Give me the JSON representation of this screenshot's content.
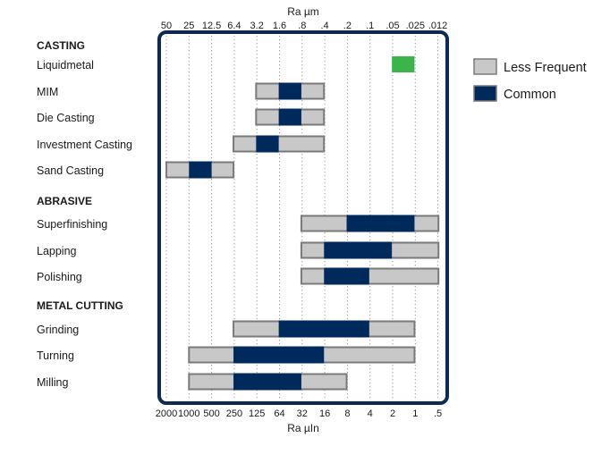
{
  "chart_data": {
    "type": "bar",
    "top_axis": {
      "label": "Ra µm",
      "ticks": [
        "50",
        "25",
        "12.5",
        "6.4",
        "3.2",
        "1.6",
        ".8",
        ".4",
        ".2",
        ".1",
        ".05",
        ".025",
        ".012"
      ]
    },
    "bottom_axis": {
      "label": "Ra µIn",
      "ticks": [
        "2000",
        "1000",
        "500",
        "250",
        "125",
        "64",
        "32",
        "16",
        "8",
        "4",
        "2",
        "1",
        ".5"
      ]
    },
    "grid": true,
    "legend": {
      "position": "top-right",
      "items": [
        {
          "label": "Less Frequent",
          "color": "#c8c8c8"
        },
        {
          "label": "Common",
          "color": "#002a5c"
        }
      ]
    },
    "colors": {
      "less_frequent": "#c8c8c8",
      "common": "#002a5c",
      "special": "#3bb54a",
      "frame": "#0d2a52",
      "bar_border": "#7a7a7a",
      "grid": "#9a9a9a"
    },
    "groups": [
      {
        "name": "CASTING",
        "processes": [
          {
            "name": "Liquidmetal",
            "special": [
              0.05,
              0.025
            ]
          },
          {
            "name": "MIM",
            "range": [
              3.2,
              0.4
            ],
            "common": [
              1.6,
              0.8
            ]
          },
          {
            "name": "Die Casting",
            "range": [
              3.2,
              0.4
            ],
            "common": [
              1.6,
              0.8
            ]
          },
          {
            "name": "Investment Casting",
            "range": [
              6.4,
              0.4
            ],
            "common": [
              3.2,
              1.6
            ]
          },
          {
            "name": "Sand Casting",
            "range": [
              50,
              6.4
            ],
            "common": [
              25,
              12.5
            ]
          }
        ]
      },
      {
        "name": "ABRASIVE",
        "processes": [
          {
            "name": "Superfinishing",
            "range": [
              0.8,
              0.012
            ],
            "common": [
              0.2,
              0.025
            ]
          },
          {
            "name": "Lapping",
            "range": [
              0.8,
              0.012
            ],
            "common": [
              0.4,
              0.05
            ]
          },
          {
            "name": "Polishing",
            "range": [
              0.8,
              0.012
            ],
            "common": [
              0.4,
              0.1
            ]
          }
        ]
      },
      {
        "name": "METAL CUTTING",
        "processes": [
          {
            "name": "Grinding",
            "range": [
              6.4,
              0.025
            ],
            "common": [
              1.6,
              0.1
            ]
          },
          {
            "name": "Turning",
            "range": [
              25,
              0.025
            ],
            "common": [
              6.4,
              0.4
            ]
          },
          {
            "name": "Milling",
            "range": [
              25,
              0.2
            ],
            "common": [
              6.4,
              0.8
            ]
          }
        ]
      }
    ]
  }
}
